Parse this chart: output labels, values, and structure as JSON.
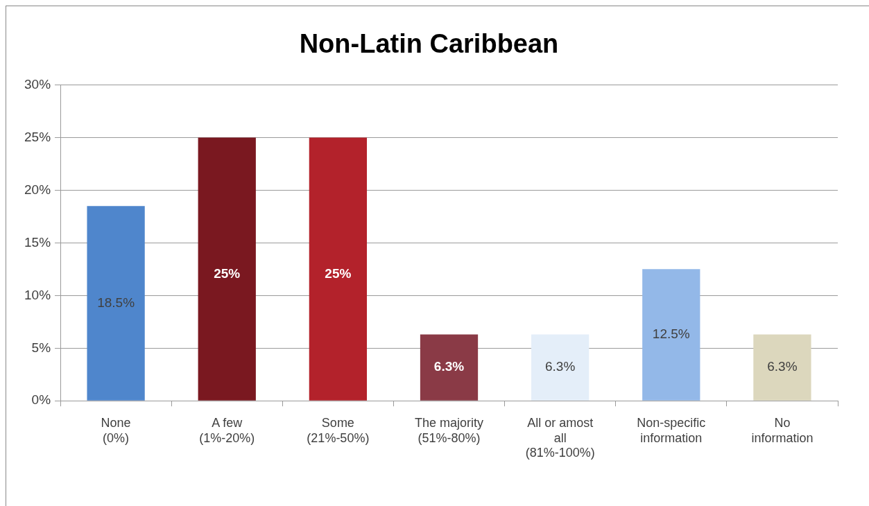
{
  "chart_data": {
    "type": "bar",
    "title": "Non-Latin Caribbean",
    "categories": [
      "None\n(0%)",
      "A few\n(1%-20%)",
      "Some\n(21%-50%)",
      "The majority\n(51%-80%)",
      "All or amost all\n(81%-100%)",
      "Non-specific information",
      "No information"
    ],
    "values": [
      18.5,
      25,
      25,
      6.3,
      6.3,
      12.5,
      6.3
    ],
    "colors": [
      "#4f86cc",
      "#7a1820",
      "#b3222b",
      "#8a3a46",
      "#e4eef9",
      "#93b8e8",
      "#dcd7bd"
    ],
    "value_labels": [
      "18.5%",
      "25%",
      "25%",
      "6.3%",
      "6.3%",
      "12.5%",
      "6.3%"
    ],
    "ylim": [
      0,
      30
    ],
    "yticks": [
      {
        "value": 0,
        "label": "0%"
      },
      {
        "value": 5,
        "label": "5%"
      },
      {
        "value": 10,
        "label": "10%"
      },
      {
        "value": 15,
        "label": "15%"
      },
      {
        "value": 20,
        "label": "20%"
      },
      {
        "value": 25,
        "label": "25%"
      },
      {
        "value": 30,
        "label": "30%"
      }
    ],
    "grid": "y",
    "legend": false
  }
}
